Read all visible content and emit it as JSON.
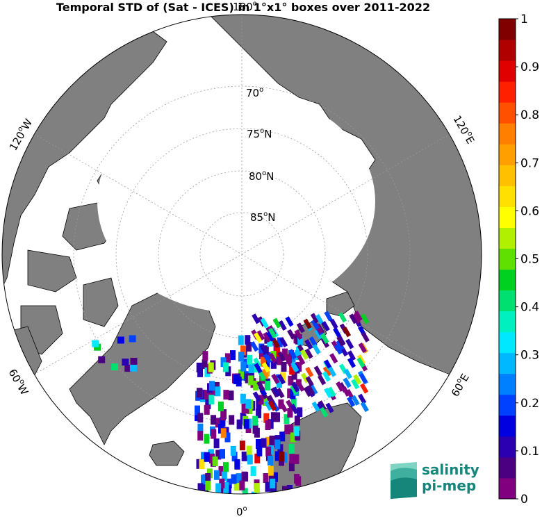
{
  "title": "Temporal STD of (Sat - ICES) in 1°x1° boxes over 2011-2022",
  "map": {
    "projection": "north polar stereographic",
    "center_lat": 90,
    "outer_lat": 60,
    "land_color": "#808080",
    "ice_color": "#ffffff",
    "ocean_color": "#ffffff"
  },
  "lat_labels": [
    {
      "deg": "70",
      "hemi": ""
    },
    {
      "deg": "75",
      "hemi": "N"
    },
    {
      "deg": "80",
      "hemi": "N"
    },
    {
      "deg": "85",
      "hemi": "N"
    }
  ],
  "lon_labels": {
    "top": "180",
    "bottom": "0",
    "upper_left": "120",
    "upper_left_hemi": "W",
    "upper_right": "120",
    "upper_right_hemi": "E",
    "lower_left": "60",
    "lower_left_hemi": "W",
    "lower_right": "60",
    "lower_right_hemi": "E"
  },
  "colorbar": {
    "min": 0,
    "max": 1,
    "ticks": [
      "1",
      "0.9",
      "0.8",
      "0.7",
      "0.6",
      "0.5",
      "0.4",
      "0.3",
      "0.2",
      "0.1",
      "0"
    ],
    "colors": [
      "#800080",
      "#4b0082",
      "#2a00b0",
      "#0000e0",
      "#0040ff",
      "#0080ff",
      "#00b8ff",
      "#00e8ff",
      "#00f0c0",
      "#00e070",
      "#00d020",
      "#60e000",
      "#b0f000",
      "#ffff00",
      "#ffe000",
      "#ffc000",
      "#ffa000",
      "#ff8000",
      "#ff5000",
      "#ff2000",
      "#e00000",
      "#b00000",
      "#800000"
    ]
  },
  "logo": {
    "line1": "salinity",
    "line2": "pi-mep",
    "color": "#16867a"
  }
}
